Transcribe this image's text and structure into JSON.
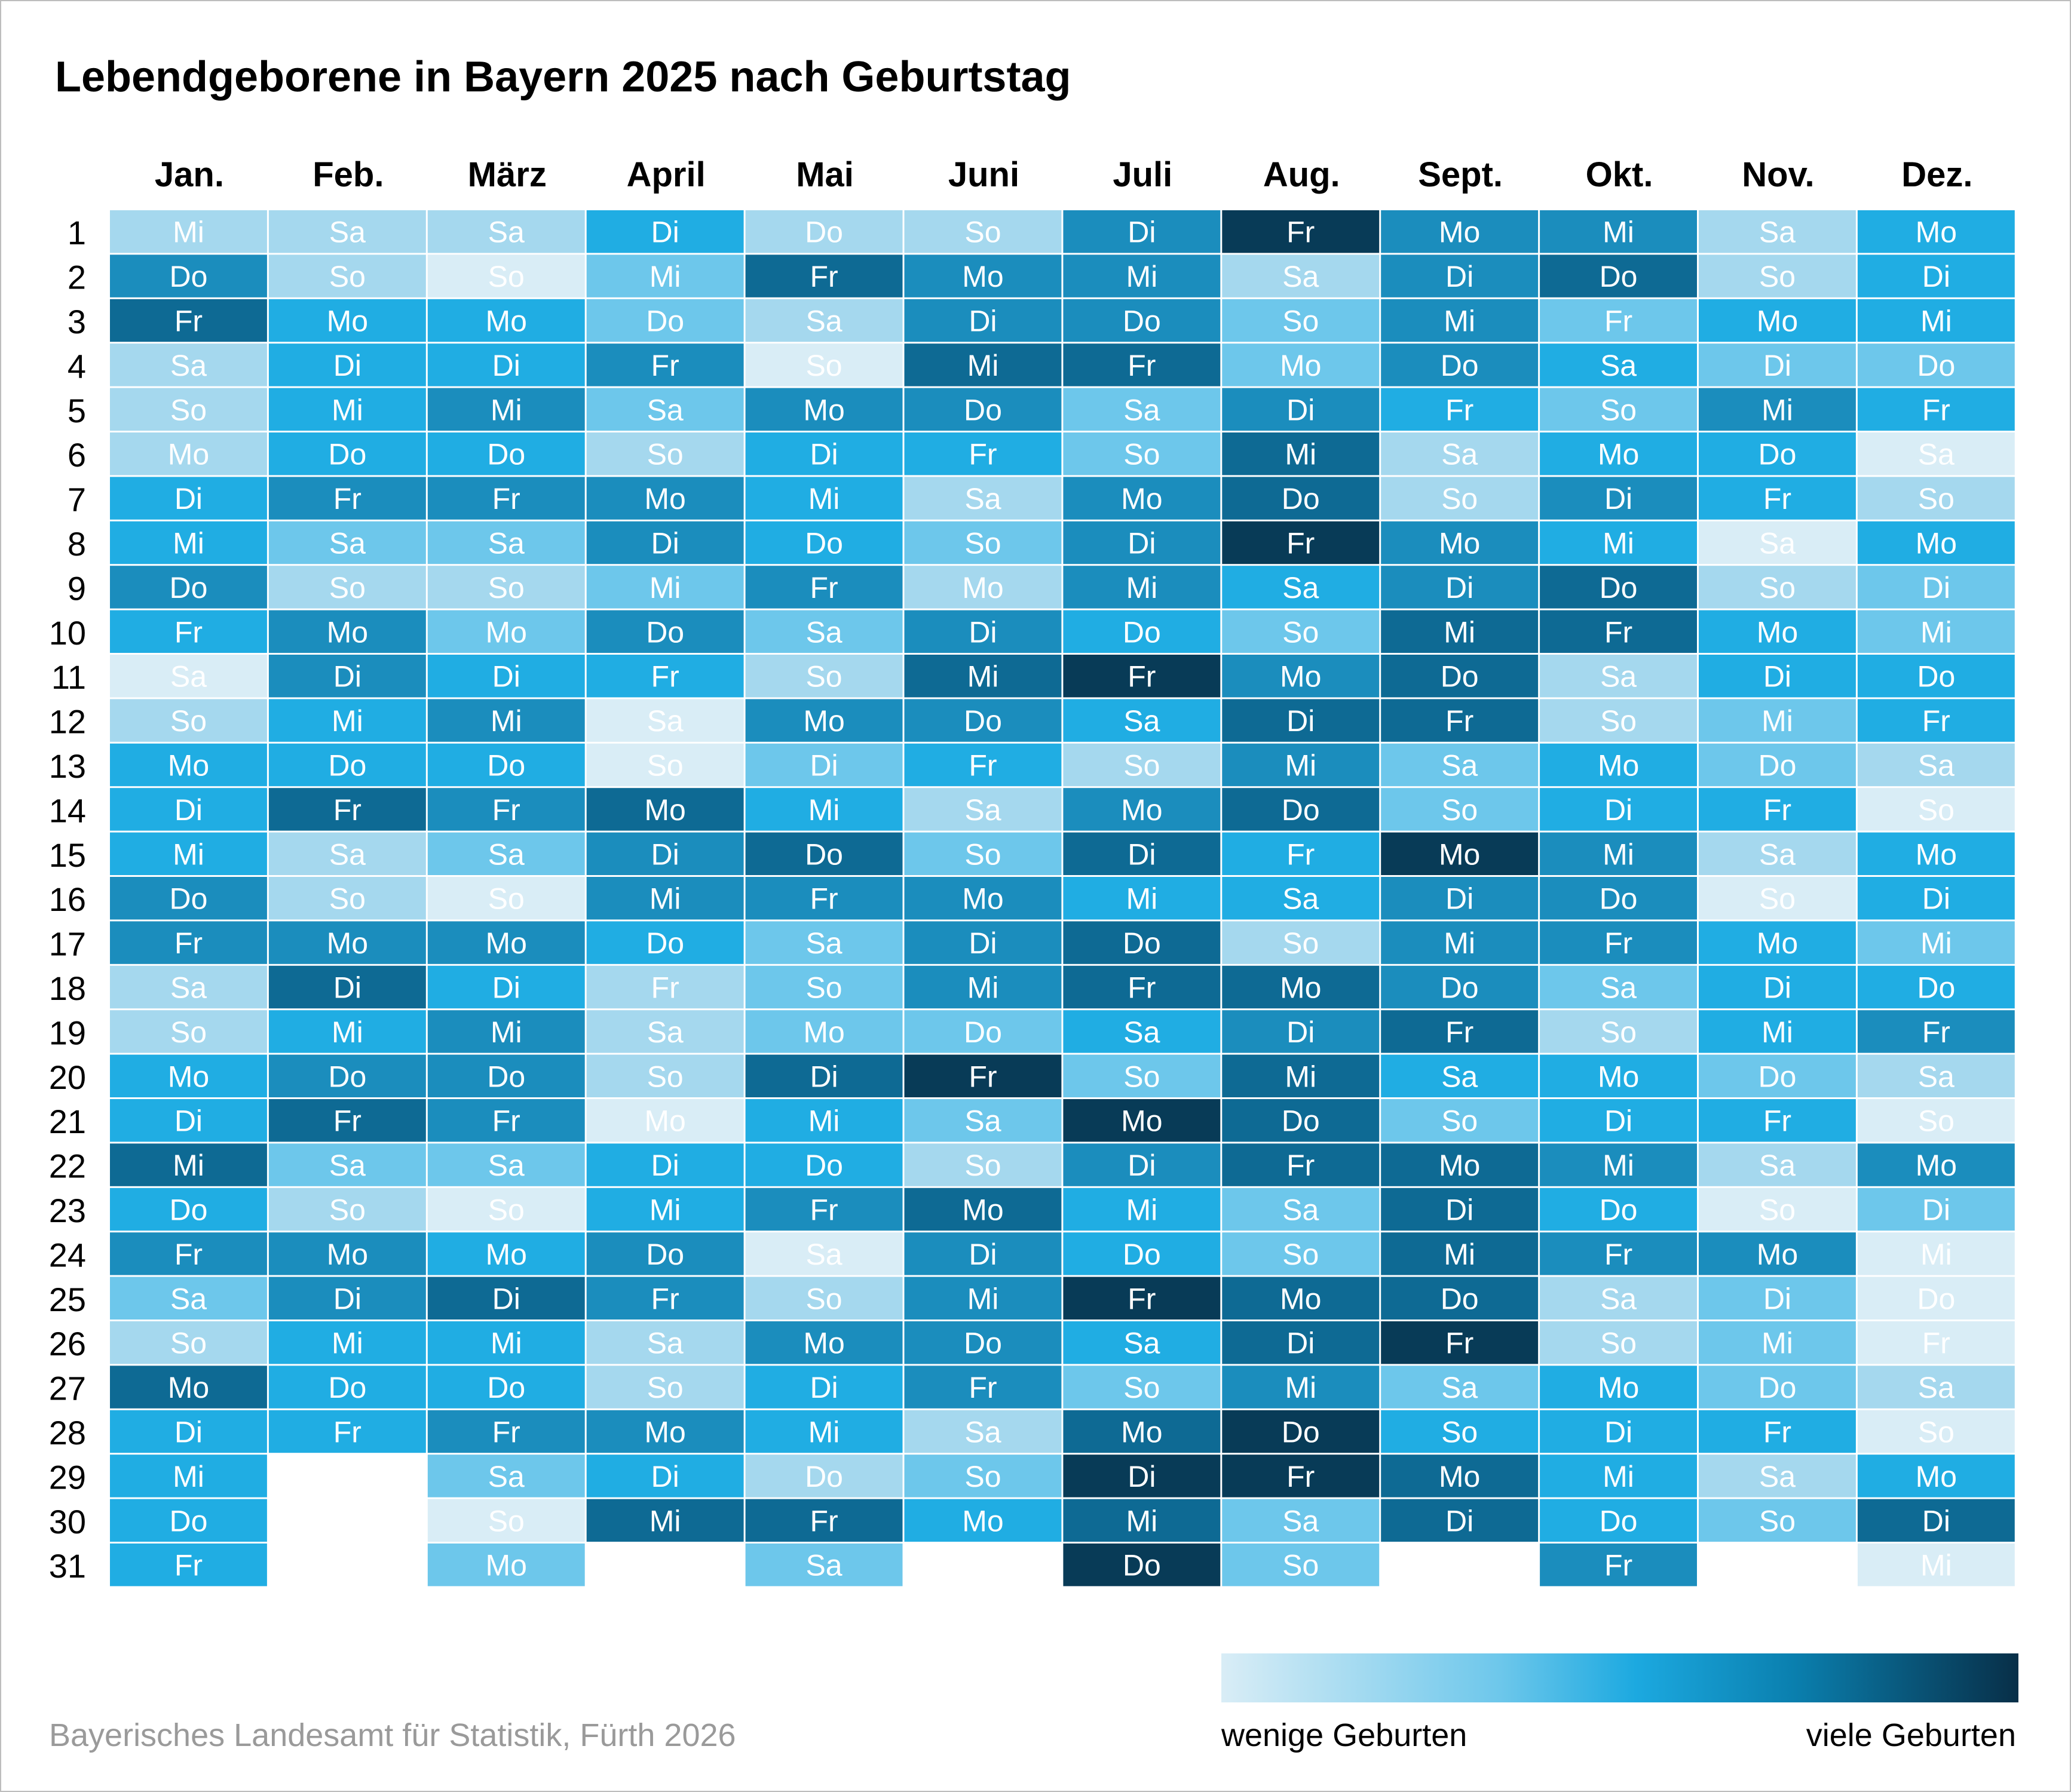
{
  "title": "Lebendgeborene in Bayern 2025 nach Geburtstag",
  "source": "Bayerisches Landesamt für Statistik, Fürth 2026",
  "legend": {
    "low_label": "wenige Geburten",
    "high_label": "viele Geburten"
  },
  "colors": {
    "scale": [
      "#d9edf6",
      "#a5d8ee",
      "#6dc7eb",
      "#20ade3",
      "#1b8dbd",
      "#0e6a94",
      "#083b57"
    ],
    "text_on_light": "#ffffff",
    "text_on_dark": "#ffffff"
  },
  "chart_data": {
    "type": "heatmap",
    "title": "Lebendgeborene in Bayern 2025 nach Geburtstag",
    "months": [
      "Jan.",
      "Feb.",
      "März",
      "April",
      "Mai",
      "Juni",
      "Juli",
      "Aug.",
      "Sept.",
      "Okt.",
      "Nov.",
      "Dez."
    ],
    "days": [
      1,
      2,
      3,
      4,
      5,
      6,
      7,
      8,
      9,
      10,
      11,
      12,
      13,
      14,
      15,
      16,
      17,
      18,
      19,
      20,
      21,
      22,
      23,
      24,
      25,
      26,
      27,
      28,
      29,
      30,
      31
    ],
    "value_scale": "0 = wenige Geburten, 6 = viele Geburten",
    "weekdays": [
      [
        "Mi",
        "Do",
        "Fr",
        "Sa",
        "So",
        "Mo",
        "Di",
        "Mi",
        "Do",
        "Fr",
        "Sa",
        "So",
        "Mo",
        "Di",
        "Mi",
        "Do",
        "Fr",
        "Sa",
        "So",
        "Mo",
        "Di",
        "Mi",
        "Do",
        "Fr",
        "Sa",
        "So",
        "Mo",
        "Di",
        "Mi",
        "Do",
        "Fr"
      ],
      [
        "Sa",
        "So",
        "Mo",
        "Di",
        "Mi",
        "Do",
        "Fr",
        "Sa",
        "So",
        "Mo",
        "Di",
        "Mi",
        "Do",
        "Fr",
        "Sa",
        "So",
        "Mo",
        "Di",
        "Mi",
        "Do",
        "Fr",
        "Sa",
        "So",
        "Mo",
        "Di",
        "Mi",
        "Do",
        "Fr"
      ],
      [
        "Sa",
        "So",
        "Mo",
        "Di",
        "Mi",
        "Do",
        "Fr",
        "Sa",
        "So",
        "Mo",
        "Di",
        "Mi",
        "Do",
        "Fr",
        "Sa",
        "So",
        "Mo",
        "Di",
        "Mi",
        "Do",
        "Fr",
        "Sa",
        "So",
        "Mo",
        "Di",
        "Mi",
        "Do",
        "Fr",
        "Sa",
        "So",
        "Mo"
      ],
      [
        "Di",
        "Mi",
        "Do",
        "Fr",
        "Sa",
        "So",
        "Mo",
        "Di",
        "Mi",
        "Do",
        "Fr",
        "Sa",
        "So",
        "Mo",
        "Di",
        "Mi",
        "Do",
        "Fr",
        "Sa",
        "So",
        "Mo",
        "Di",
        "Mi",
        "Do",
        "Fr",
        "Sa",
        "So",
        "Mo",
        "Di",
        "Mi"
      ],
      [
        "Do",
        "Fr",
        "Sa",
        "So",
        "Mo",
        "Di",
        "Mi",
        "Do",
        "Fr",
        "Sa",
        "So",
        "Mo",
        "Di",
        "Mi",
        "Do",
        "Fr",
        "Sa",
        "So",
        "Mo",
        "Di",
        "Mi",
        "Do",
        "Fr",
        "Sa",
        "So",
        "Mo",
        "Di",
        "Mi",
        "Do",
        "Fr",
        "Sa"
      ],
      [
        "So",
        "Mo",
        "Di",
        "Mi",
        "Do",
        "Fr",
        "Sa",
        "So",
        "Mo",
        "Di",
        "Mi",
        "Do",
        "Fr",
        "Sa",
        "So",
        "Mo",
        "Di",
        "Mi",
        "Do",
        "Fr",
        "Sa",
        "So",
        "Mo",
        "Di",
        "Mi",
        "Do",
        "Fr",
        "Sa",
        "So",
        "Mo"
      ],
      [
        "Di",
        "Mi",
        "Do",
        "Fr",
        "Sa",
        "So",
        "Mo",
        "Di",
        "Mi",
        "Do",
        "Fr",
        "Sa",
        "So",
        "Mo",
        "Di",
        "Mi",
        "Do",
        "Fr",
        "Sa",
        "So",
        "Mo",
        "Di",
        "Mi",
        "Do",
        "Fr",
        "Sa",
        "So",
        "Mo",
        "Di",
        "Mi",
        "Do"
      ],
      [
        "Fr",
        "Sa",
        "So",
        "Mo",
        "Di",
        "Mi",
        "Do",
        "Fr",
        "Sa",
        "So",
        "Mo",
        "Di",
        "Mi",
        "Do",
        "Fr",
        "Sa",
        "So",
        "Mo",
        "Di",
        "Mi",
        "Do",
        "Fr",
        "Sa",
        "So",
        "Mo",
        "Di",
        "Mi",
        "Do",
        "Fr",
        "Sa",
        "So"
      ],
      [
        "Mo",
        "Di",
        "Mi",
        "Do",
        "Fr",
        "Sa",
        "So",
        "Mo",
        "Di",
        "Mi",
        "Do",
        "Fr",
        "Sa",
        "So",
        "Mo",
        "Di",
        "Mi",
        "Do",
        "Fr",
        "Sa",
        "So",
        "Mo",
        "Di",
        "Mi",
        "Do",
        "Fr",
        "Sa",
        "So",
        "Mo",
        "Di"
      ],
      [
        "Mi",
        "Do",
        "Fr",
        "Sa",
        "So",
        "Mo",
        "Di",
        "Mi",
        "Do",
        "Fr",
        "Sa",
        "So",
        "Mo",
        "Di",
        "Mi",
        "Do",
        "Fr",
        "Sa",
        "So",
        "Mo",
        "Di",
        "Mi",
        "Do",
        "Fr",
        "Sa",
        "So",
        "Mo",
        "Di",
        "Mi",
        "Do",
        "Fr"
      ],
      [
        "Sa",
        "So",
        "Mo",
        "Di",
        "Mi",
        "Do",
        "Fr",
        "Sa",
        "So",
        "Mo",
        "Di",
        "Mi",
        "Do",
        "Fr",
        "Sa",
        "So",
        "Mo",
        "Di",
        "Mi",
        "Do",
        "Fr",
        "Sa",
        "So",
        "Mo",
        "Di",
        "Mi",
        "Do",
        "Fr",
        "Sa",
        "So"
      ],
      [
        "Mo",
        "Di",
        "Mi",
        "Do",
        "Fr",
        "Sa",
        "So",
        "Mo",
        "Di",
        "Mi",
        "Do",
        "Fr",
        "Sa",
        "So",
        "Mo",
        "Di",
        "Mi",
        "Do",
        "Fr",
        "Sa",
        "So",
        "Mo",
        "Di",
        "Mi",
        "Do",
        "Fr",
        "Sa",
        "So",
        "Mo",
        "Di",
        "Mi"
      ]
    ],
    "values": [
      [
        1,
        4,
        5,
        1,
        1,
        1,
        3,
        3,
        4,
        3,
        0,
        1,
        3,
        3,
        3,
        4,
        4,
        1,
        1,
        3,
        3,
        5,
        3,
        4,
        2,
        1,
        5,
        3,
        3,
        3,
        3
      ],
      [
        1,
        1,
        3,
        3,
        3,
        3,
        4,
        2,
        1,
        4,
        4,
        3,
        3,
        5,
        1,
        1,
        4,
        5,
        3,
        4,
        5,
        2,
        1,
        4,
        4,
        3,
        3,
        3
      ],
      [
        1,
        0,
        3,
        3,
        4,
        3,
        4,
        2,
        1,
        2,
        3,
        4,
        3,
        4,
        2,
        0,
        4,
        3,
        4,
        4,
        4,
        2,
        0,
        3,
        5,
        3,
        3,
        4,
        2,
        0,
        2
      ],
      [
        3,
        2,
        2,
        4,
        2,
        1,
        4,
        4,
        2,
        4,
        3,
        0,
        0,
        5,
        4,
        4,
        3,
        1,
        1,
        1,
        0,
        3,
        3,
        4,
        4,
        1,
        1,
        4,
        3,
        5
      ],
      [
        1,
        5,
        1,
        0,
        4,
        3,
        3,
        3,
        4,
        2,
        1,
        4,
        2,
        3,
        5,
        4,
        2,
        2,
        2,
        5,
        3,
        3,
        4,
        0,
        1,
        4,
        3,
        3,
        1,
        5,
        2
      ],
      [
        1,
        4,
        4,
        5,
        4,
        3,
        1,
        2,
        1,
        4,
        5,
        4,
        3,
        1,
        2,
        4,
        4,
        4,
        2,
        6,
        2,
        1,
        5,
        4,
        4,
        4,
        4,
        1,
        2,
        3
      ],
      [
        4,
        4,
        4,
        5,
        2,
        2,
        4,
        4,
        4,
        3,
        6,
        3,
        1,
        4,
        5,
        3,
        5,
        5,
        3,
        2,
        6,
        4,
        3,
        3,
        6,
        3,
        2,
        5,
        6,
        5,
        6
      ],
      [
        6,
        1,
        2,
        2,
        4,
        5,
        5,
        6,
        3,
        2,
        4,
        5,
        4,
        5,
        3,
        3,
        1,
        5,
        4,
        5,
        5,
        5,
        2,
        2,
        5,
        5,
        4,
        6,
        6,
        2,
        2
      ],
      [
        4,
        4,
        4,
        4,
        3,
        1,
        1,
        4,
        4,
        5,
        5,
        5,
        2,
        2,
        6,
        4,
        4,
        4,
        5,
        3,
        2,
        5,
        5,
        5,
        5,
        6,
        2,
        3,
        5,
        5
      ],
      [
        4,
        5,
        2,
        3,
        2,
        3,
        4,
        3,
        5,
        5,
        1,
        1,
        3,
        3,
        4,
        4,
        4,
        2,
        1,
        3,
        3,
        4,
        3,
        4,
        1,
        1,
        3,
        3,
        3,
        3,
        4
      ],
      [
        1,
        1,
        3,
        2,
        4,
        3,
        3,
        0,
        1,
        3,
        3,
        2,
        2,
        3,
        1,
        0,
        3,
        3,
        3,
        2,
        3,
        1,
        0,
        4,
        2,
        2,
        2,
        3,
        1,
        2
      ],
      [
        3,
        3,
        3,
        2,
        3,
        0,
        1,
        3,
        2,
        2,
        3,
        3,
        1,
        0,
        3,
        3,
        2,
        3,
        4,
        1,
        0,
        4,
        2,
        0,
        0,
        0,
        1,
        0,
        3,
        5,
        0
      ]
    ]
  }
}
